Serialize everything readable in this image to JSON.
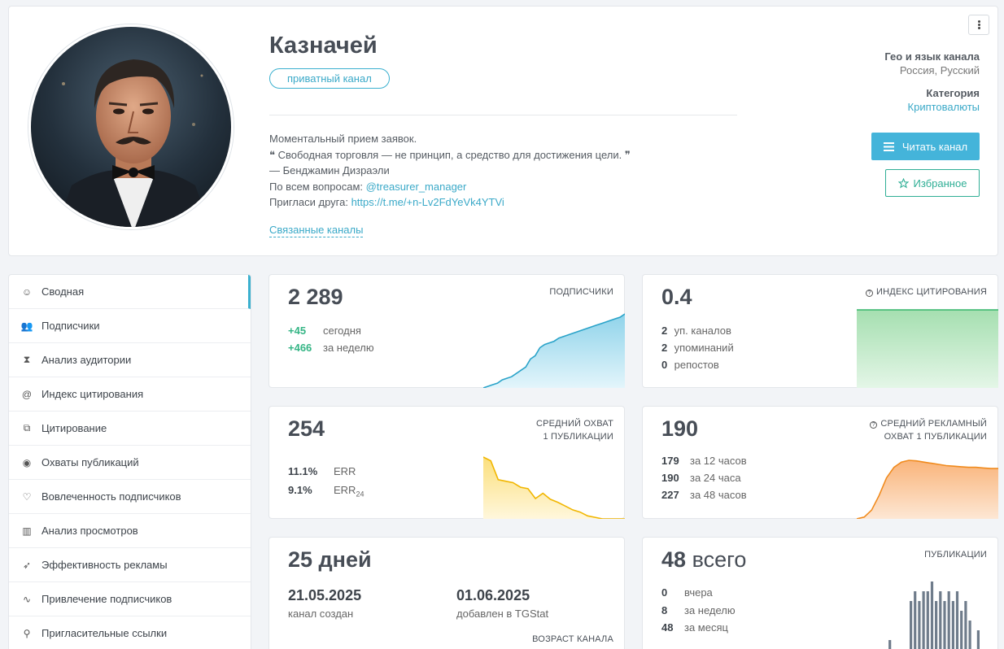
{
  "channel": {
    "title": "Казначей",
    "badge": "приватный канал",
    "desc": {
      "line1": "Моментальный прием заявок.",
      "quote": "❝ Свободная торговля — не принцип, а средство для достижения цели. ❞",
      "author": "— Бенджамин Дизраэли",
      "q_prefix": "По всем вопросам: ",
      "q_link": "@treasurer_manager",
      "inv_prefix": "Пригласи друга: ",
      "inv_link": "https://t.me/+n-Lv2FdYeVk4YTVi"
    },
    "related": "Связанные каналы",
    "geo_label": "Гео и язык канала",
    "geo_value": "Россия, Русский",
    "cat_label": "Категория",
    "cat_value": "Криптовалюты",
    "read_btn": "Читать канал",
    "fav_btn": "Избранное"
  },
  "sidebar": {
    "items": [
      {
        "label": "Сводная",
        "icon": "smile-icon"
      },
      {
        "label": "Подписчики",
        "icon": "users-icon"
      },
      {
        "label": "Анализ аудитории",
        "icon": "hourglass-icon"
      },
      {
        "label": "Индекс цитирования",
        "icon": "at-icon"
      },
      {
        "label": "Цитирование",
        "icon": "copy-icon"
      },
      {
        "label": "Охваты публикаций",
        "icon": "eye-icon"
      },
      {
        "label": "Вовлеченность подписчиков",
        "icon": "heart-icon"
      },
      {
        "label": "Анализ просмотров",
        "icon": "bar-chart-icon"
      },
      {
        "label": "Эффективность рекламы",
        "icon": "rocket-icon"
      },
      {
        "label": "Привлечение подписчиков",
        "icon": "trend-icon"
      },
      {
        "label": "Пригласительные ссылки",
        "icon": "link-icon"
      }
    ]
  },
  "subs": {
    "value": "2 289",
    "title": "ПОДПИСЧИКИ",
    "today_n": "+45",
    "today_t": "сегодня",
    "week_n": "+466",
    "week_t": "за неделю"
  },
  "cit": {
    "value": "0.4",
    "title": "ИНДЕКС ЦИТИРОВАНИЯ",
    "rows": [
      {
        "n": "2",
        "t": "уп. каналов"
      },
      {
        "n": "2",
        "t": "упоминаний"
      },
      {
        "n": "0",
        "t": "репостов"
      }
    ]
  },
  "reach": {
    "value": "254",
    "title1": "СРЕДНИЙ ОХВАТ",
    "title2": "1 ПУБЛИКАЦИИ",
    "err_n": "11.1%",
    "err_t": "ERR",
    "err24_n": "9.1%",
    "err24_t": "ERR",
    "err24_sub": "24"
  },
  "adreach": {
    "value": "190",
    "title1": "СРЕДНИЙ РЕКЛАМНЫЙ",
    "title2": "ОХВАТ 1 ПУБЛИКАЦИИ",
    "rows": [
      {
        "n": "179",
        "t": "за 12 часов"
      },
      {
        "n": "190",
        "t": "за 24 часа"
      },
      {
        "n": "227",
        "t": "за 48 часов"
      }
    ]
  },
  "age": {
    "value": "25 дней",
    "created_date": "21.05.2025",
    "created_t": "канал создан",
    "added_date": "01.06.2025",
    "added_t": "добавлен в TGStat",
    "title": "ВОЗРАСТ КАНАЛА"
  },
  "posts": {
    "value_n": "48",
    "value_t": "всего",
    "title": "ПУБЛИКАЦИИ",
    "rows": [
      {
        "n": "0",
        "t": "вчера"
      },
      {
        "n": "8",
        "t": "за неделю"
      },
      {
        "n": "48",
        "t": "за месяц"
      }
    ]
  },
  "colors": {
    "accent": "#3bb0cf",
    "green": "#35b585",
    "orange": "#f08a1c",
    "yellow": "#f5c21b"
  },
  "chart_data": [
    {
      "type": "area",
      "name": "subscribers",
      "values": [
        0,
        1,
        2,
        3,
        5,
        6,
        7,
        9,
        11,
        13,
        18,
        20,
        25,
        27,
        28,
        29,
        31,
        32,
        33,
        34,
        35,
        36,
        37,
        38,
        39,
        40,
        41,
        42,
        43,
        44,
        46
      ]
    },
    {
      "type": "area",
      "name": "citation_index",
      "values": [
        1,
        1
      ]
    },
    {
      "type": "area",
      "name": "reach",
      "values": [
        100,
        95,
        70,
        68,
        66,
        60,
        58,
        45,
        52,
        44,
        40,
        35,
        30,
        27,
        22,
        20,
        18,
        18,
        18,
        18
      ]
    },
    {
      "type": "area",
      "name": "ad_reach",
      "values": [
        0,
        3,
        15,
        40,
        70,
        88,
        97,
        100,
        99,
        97,
        95,
        93,
        91,
        90,
        89,
        88,
        88,
        87,
        86,
        86
      ]
    },
    {
      "type": "bar",
      "name": "posts",
      "values": [
        0,
        0,
        0,
        0,
        0,
        0,
        1,
        0,
        0,
        0,
        0,
        5,
        6,
        5,
        6,
        6,
        7,
        5,
        6,
        5,
        6,
        5,
        6,
        4,
        5,
        3,
        0,
        2
      ]
    }
  ]
}
